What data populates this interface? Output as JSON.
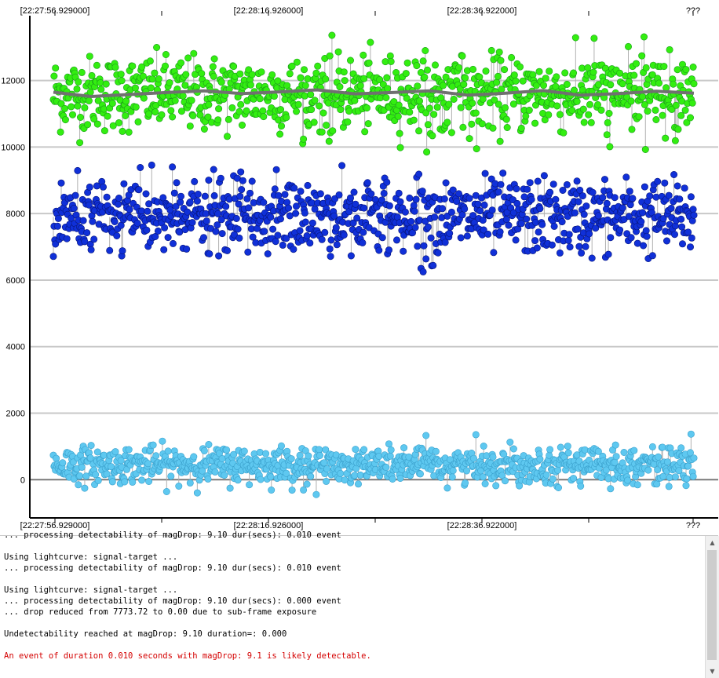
{
  "chart_data": {
    "type": "scatter",
    "x_tick_labels_top": [
      "[22:27:56.929000]",
      "[22:28:16.926000]",
      "[22:28:36.922000]",
      "???"
    ],
    "x_tick_labels_bottom": [
      "[22:27:56.929000]",
      "[22:28:16.926000]",
      "[22:28:36.922000]",
      "???"
    ],
    "y_ticks": [
      0,
      2000,
      4000,
      6000,
      8000,
      10000,
      12000
    ],
    "ylim": [
      -1150,
      13950
    ],
    "grid": true,
    "series": [
      {
        "color": "#33ee11",
        "edge": "#1a9a1a",
        "mean": 11600,
        "spread": 620,
        "count": 900,
        "min": 9800,
        "max": 13400,
        "smooth_mean_line": [
          11650,
          11520,
          11580,
          11640,
          11690,
          11610,
          11660,
          11720,
          11600,
          11640,
          11690,
          11560,
          11620,
          11700,
          11560,
          11610,
          11680,
          11620
        ],
        "smooth_line_color": "#707070"
      },
      {
        "color": "#1030d8",
        "edge": "#08157a",
        "mean": 7900,
        "spread": 620,
        "count": 900,
        "min": 6100,
        "max": 9650
      },
      {
        "color": "#5ec8f0",
        "edge": "#3aa0cc",
        "mean": 450,
        "spread": 300,
        "count": 900,
        "min": -560,
        "max": 1380
      }
    ]
  },
  "log": {
    "lines": [
      {
        "text": "... processing detectability of magDrop: 9.10 dur(secs): 0.010 event",
        "style": "normal"
      },
      {
        "text": "",
        "style": "normal"
      },
      {
        "text": "Using lightcurve: signal-target ...",
        "style": "normal"
      },
      {
        "text": "... processing detectability of magDrop: 9.10 dur(secs): 0.010 event",
        "style": "normal"
      },
      {
        "text": "",
        "style": "normal"
      },
      {
        "text": "Using lightcurve: signal-target ...",
        "style": "normal"
      },
      {
        "text": "... processing detectability of magDrop: 9.10 dur(secs): 0.000 event",
        "style": "normal"
      },
      {
        "text": "... drop reduced from 7773.72 to 0.00 due to sub-frame exposure",
        "style": "normal"
      },
      {
        "text": "",
        "style": "normal"
      },
      {
        "text": "Undetectability reached at magDrop: 9.10 duration=: 0.000",
        "style": "normal"
      },
      {
        "text": "",
        "style": "normal"
      },
      {
        "text": "An event of duration 0.010 seconds with magDrop: 9.1 is likely detectable.",
        "style": "red"
      }
    ]
  }
}
